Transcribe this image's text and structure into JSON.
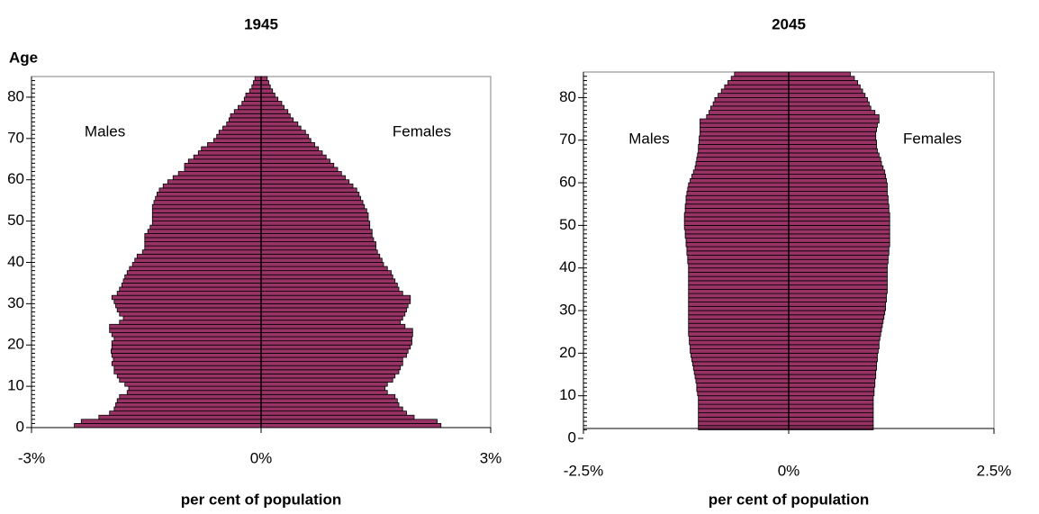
{
  "chart_data": [
    {
      "type": "pyramid",
      "title": "1945",
      "ylabel": "Age",
      "xlabel": "per cent of population",
      "left_label": "Males",
      "right_label": "Females",
      "xlim": [
        -3,
        3
      ],
      "xticks": [
        {
          "value": -3,
          "label": "-3%"
        },
        {
          "value": 0,
          "label": "0%"
        },
        {
          "value": 3,
          "label": "3%"
        }
      ],
      "ylim": [
        0,
        85
      ],
      "yticks": [
        0,
        10,
        20,
        30,
        40,
        50,
        60,
        70,
        80
      ],
      "y": [
        0,
        1,
        2,
        3,
        4,
        5,
        6,
        7,
        8,
        9,
        10,
        11,
        12,
        13,
        14,
        15,
        16,
        17,
        18,
        19,
        20,
        21,
        22,
        23,
        24,
        25,
        26,
        27,
        28,
        29,
        30,
        31,
        32,
        33,
        34,
        35,
        36,
        37,
        38,
        39,
        40,
        41,
        42,
        43,
        44,
        45,
        46,
        47,
        48,
        49,
        50,
        51,
        52,
        53,
        54,
        55,
        56,
        57,
        58,
        59,
        60,
        61,
        62,
        63,
        64,
        65,
        66,
        67,
        68,
        69,
        70,
        71,
        72,
        73,
        74,
        75,
        76,
        77,
        78,
        79,
        80,
        81,
        82,
        83,
        84
      ],
      "series": [
        {
          "color": "#993366",
          "values": [
            -2.44,
            -2.35,
            -2.12,
            -1.98,
            -1.92,
            -1.9,
            -1.88,
            -1.85,
            -1.75,
            -1.73,
            -1.78,
            -1.85,
            -1.88,
            -1.92,
            -1.92,
            -1.95,
            -1.93,
            -1.95,
            -1.96,
            -1.95,
            -1.95,
            -1.92,
            -1.95,
            -1.98,
            -1.98,
            -1.85,
            -1.8,
            -1.85,
            -1.88,
            -1.9,
            -1.92,
            -1.95,
            -1.88,
            -1.85,
            -1.82,
            -1.8,
            -1.78,
            -1.75,
            -1.72,
            -1.68,
            -1.65,
            -1.62,
            -1.55,
            -1.52,
            -1.52,
            -1.52,
            -1.52,
            -1.48,
            -1.45,
            -1.42,
            -1.42,
            -1.42,
            -1.42,
            -1.42,
            -1.4,
            -1.38,
            -1.36,
            -1.33,
            -1.28,
            -1.22,
            -1.15,
            -1.08,
            -1.0,
            -1.0,
            -0.95,
            -0.88,
            -0.82,
            -0.78,
            -0.7,
            -0.62,
            -0.58,
            -0.55,
            -0.5,
            -0.45,
            -0.42,
            -0.4,
            -0.35,
            -0.3,
            -0.25,
            -0.22,
            -0.2,
            -0.15,
            -0.12,
            -0.1,
            -0.08
          ]
        },
        {
          "color": "#993366",
          "values": [
            2.35,
            2.3,
            2.0,
            1.9,
            1.85,
            1.8,
            1.78,
            1.75,
            1.65,
            1.62,
            1.65,
            1.72,
            1.75,
            1.8,
            1.82,
            1.85,
            1.85,
            1.9,
            1.92,
            1.95,
            1.97,
            1.97,
            1.98,
            1.98,
            1.88,
            1.82,
            1.85,
            1.88,
            1.9,
            1.92,
            1.95,
            1.95,
            1.85,
            1.8,
            1.78,
            1.75,
            1.72,
            1.7,
            1.65,
            1.6,
            1.58,
            1.55,
            1.52,
            1.5,
            1.5,
            1.47,
            1.45,
            1.45,
            1.42,
            1.42,
            1.4,
            1.4,
            1.38,
            1.35,
            1.33,
            1.3,
            1.28,
            1.25,
            1.2,
            1.15,
            1.1,
            1.05,
            1.0,
            0.95,
            0.9,
            0.85,
            0.8,
            0.75,
            0.7,
            0.65,
            0.62,
            0.58,
            0.52,
            0.48,
            0.42,
            0.38,
            0.35,
            0.3,
            0.27,
            0.22,
            0.18,
            0.15,
            0.12,
            0.1,
            0.08
          ]
        }
      ]
    },
    {
      "type": "pyramid",
      "title": "2045",
      "xlabel": "per cent of population",
      "left_label": "Males",
      "right_label": "Females",
      "xlim": [
        -2.5,
        2.5
      ],
      "xticks": [
        {
          "value": -2.5,
          "label": "-2.5%"
        },
        {
          "value": 0,
          "label": "0%"
        },
        {
          "value": 2.5,
          "label": "2.5%"
        }
      ],
      "ylim": [
        0,
        86
      ],
      "yticks": [
        0,
        10,
        20,
        30,
        40,
        50,
        60,
        70,
        80
      ],
      "y": [
        2,
        3,
        4,
        5,
        6,
        7,
        8,
        9,
        10,
        11,
        12,
        13,
        14,
        15,
        16,
        17,
        18,
        19,
        20,
        21,
        22,
        23,
        24,
        25,
        26,
        27,
        28,
        29,
        30,
        31,
        32,
        33,
        34,
        35,
        36,
        37,
        38,
        39,
        40,
        41,
        42,
        43,
        44,
        45,
        46,
        47,
        48,
        49,
        50,
        51,
        52,
        53,
        54,
        55,
        56,
        57,
        58,
        59,
        60,
        61,
        62,
        63,
        64,
        65,
        66,
        67,
        68,
        69,
        70,
        71,
        72,
        73,
        74,
        75,
        76,
        77,
        78,
        79,
        80,
        81,
        82,
        83,
        84,
        85
      ],
      "series": [
        {
          "color": "#993366",
          "values": [
            -1.1,
            -1.1,
            -1.1,
            -1.1,
            -1.1,
            -1.1,
            -1.1,
            -1.1,
            -1.11,
            -1.12,
            -1.12,
            -1.13,
            -1.14,
            -1.15,
            -1.16,
            -1.17,
            -1.18,
            -1.19,
            -1.2,
            -1.2,
            -1.21,
            -1.21,
            -1.22,
            -1.22,
            -1.22,
            -1.22,
            -1.22,
            -1.22,
            -1.22,
            -1.22,
            -1.22,
            -1.22,
            -1.22,
            -1.22,
            -1.22,
            -1.22,
            -1.22,
            -1.22,
            -1.22,
            -1.23,
            -1.23,
            -1.24,
            -1.24,
            -1.25,
            -1.25,
            -1.26,
            -1.26,
            -1.27,
            -1.27,
            -1.27,
            -1.27,
            -1.26,
            -1.26,
            -1.25,
            -1.25,
            -1.24,
            -1.23,
            -1.22,
            -1.2,
            -1.18,
            -1.16,
            -1.14,
            -1.13,
            -1.12,
            -1.11,
            -1.1,
            -1.1,
            -1.09,
            -1.09,
            -1.08,
            -1.08,
            -1.08,
            -1.08,
            -1.0,
            -0.97,
            -0.95,
            -0.92,
            -0.9,
            -0.86,
            -0.82,
            -0.78,
            -0.74,
            -0.7,
            -0.66
          ]
        },
        {
          "color": "#993366",
          "values": [
            1.03,
            1.03,
            1.03,
            1.03,
            1.03,
            1.03,
            1.03,
            1.03,
            1.04,
            1.04,
            1.05,
            1.05,
            1.06,
            1.06,
            1.07,
            1.07,
            1.08,
            1.08,
            1.09,
            1.1,
            1.1,
            1.11,
            1.12,
            1.13,
            1.14,
            1.15,
            1.16,
            1.17,
            1.18,
            1.18,
            1.19,
            1.19,
            1.2,
            1.2,
            1.2,
            1.2,
            1.2,
            1.2,
            1.2,
            1.21,
            1.21,
            1.22,
            1.22,
            1.23,
            1.23,
            1.23,
            1.23,
            1.23,
            1.23,
            1.23,
            1.23,
            1.22,
            1.22,
            1.21,
            1.21,
            1.2,
            1.2,
            1.2,
            1.19,
            1.18,
            1.17,
            1.15,
            1.13,
            1.12,
            1.1,
            1.08,
            1.07,
            1.07,
            1.06,
            1.06,
            1.07,
            1.08,
            1.1,
            1.1,
            1.05,
            1.0,
            0.98,
            0.96,
            0.93,
            0.9,
            0.87,
            0.84,
            0.8,
            0.75
          ]
        }
      ]
    }
  ]
}
